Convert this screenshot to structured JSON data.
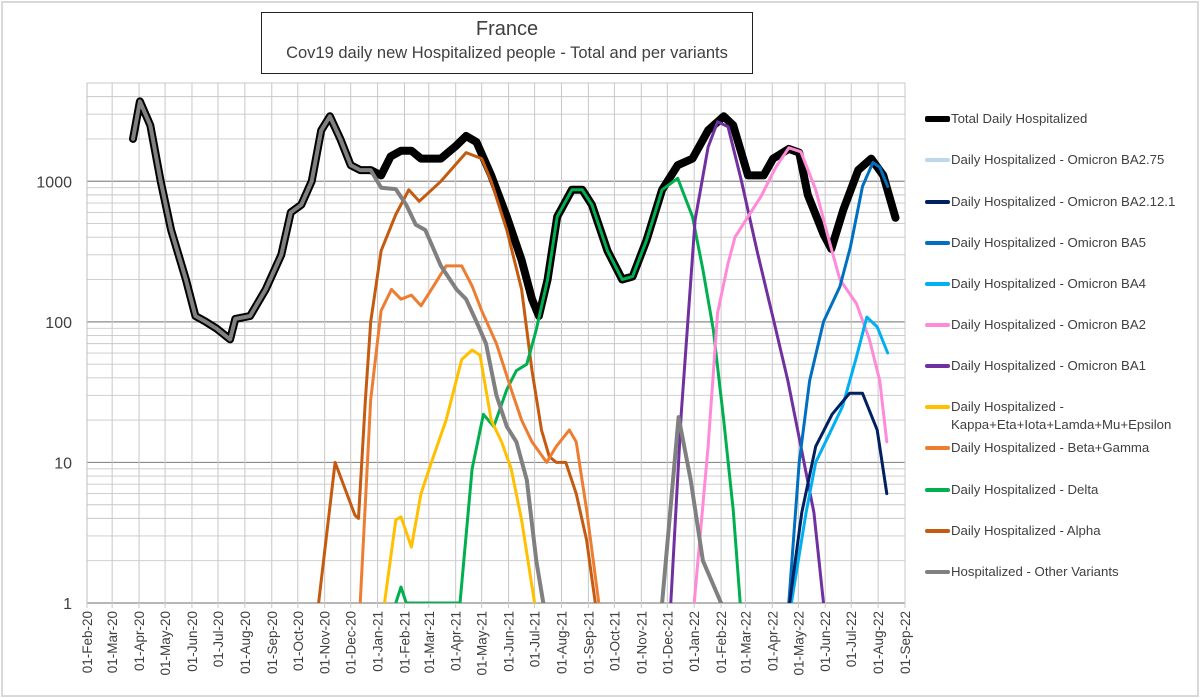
{
  "chart_data": {
    "type": "line",
    "title": "France",
    "subtitle": "Cov19 daily new Hospitalized people - Total and per variants",
    "xlabel": "",
    "ylabel": "",
    "y_scale": "log",
    "ylim": [
      1,
      5000
    ],
    "xlim": [
      "2020-02-01",
      "2022-09-01"
    ],
    "grid": true,
    "legend_position": "right",
    "y_ticks": [
      "1",
      "10",
      "100",
      "1000"
    ],
    "x_ticks": [
      "01-Feb-20",
      "01-Mar-20",
      "01-Apr-20",
      "01-May-20",
      "01-Jun-20",
      "01-Jul-20",
      "01-Aug-20",
      "01-Sep-20",
      "01-Oct-20",
      "01-Nov-20",
      "01-Dec-20",
      "01-Jan-21",
      "01-Feb-21",
      "01-Mar-21",
      "01-Apr-21",
      "01-May-21",
      "01-Jun-21",
      "01-Jul-21",
      "01-Aug-21",
      "01-Sep-21",
      "01-Oct-21",
      "01-Nov-21",
      "01-Dec-21",
      "01-Jan-22",
      "01-Feb-22",
      "01-Mar-22",
      "01-Apr-22",
      "01-May-22",
      "01-Jun-22",
      "01-Jul-22",
      "01-Aug-22",
      "01-Sep-22"
    ],
    "series": [
      {
        "name": "Total Daily Hospitalized",
        "color": "#000000",
        "points": [
          [
            "2020-03-25",
            2000
          ],
          [
            "2020-04-02",
            3700
          ],
          [
            "2020-04-14",
            2500
          ],
          [
            "2020-04-26",
            1000
          ],
          [
            "2020-05-08",
            450
          ],
          [
            "2020-05-25",
            200
          ],
          [
            "2020-06-05",
            110
          ],
          [
            "2020-06-17",
            100
          ],
          [
            "2020-06-29",
            90
          ],
          [
            "2020-07-15",
            75
          ],
          [
            "2020-07-21",
            105
          ],
          [
            "2020-08-07",
            110
          ],
          [
            "2020-08-25",
            170
          ],
          [
            "2020-09-12",
            300
          ],
          [
            "2020-09-23",
            600
          ],
          [
            "2020-10-05",
            680
          ],
          [
            "2020-10-17",
            1000
          ],
          [
            "2020-10-28",
            2300
          ],
          [
            "2020-11-07",
            2900
          ],
          [
            "2020-11-19",
            2000
          ],
          [
            "2020-12-01",
            1300
          ],
          [
            "2020-12-12",
            1200
          ],
          [
            "2020-12-24",
            1200
          ],
          [
            "2021-01-05",
            1100
          ],
          [
            "2021-01-16",
            1500
          ],
          [
            "2021-01-28",
            1650
          ],
          [
            "2021-02-09",
            1650
          ],
          [
            "2021-02-20",
            1450
          ],
          [
            "2021-03-15",
            1450
          ],
          [
            "2021-04-02",
            1800
          ],
          [
            "2021-04-13",
            2100
          ],
          [
            "2021-04-25",
            1900
          ],
          [
            "2021-05-12",
            1100
          ],
          [
            "2021-05-30",
            560
          ],
          [
            "2021-06-16",
            275
          ],
          [
            "2021-06-28",
            145
          ],
          [
            "2021-07-06",
            110
          ],
          [
            "2021-07-16",
            200
          ],
          [
            "2021-07-27",
            560
          ],
          [
            "2021-08-13",
            870
          ],
          [
            "2021-08-25",
            870
          ],
          [
            "2021-09-05",
            680
          ],
          [
            "2021-09-23",
            320
          ],
          [
            "2021-10-10",
            200
          ],
          [
            "2021-10-22",
            210
          ],
          [
            "2021-11-07",
            380
          ],
          [
            "2021-11-25",
            870
          ],
          [
            "2021-12-13",
            1300
          ],
          [
            "2021-12-30",
            1450
          ],
          [
            "2022-01-17",
            2300
          ],
          [
            "2022-02-04",
            2900
          ],
          [
            "2022-02-15",
            2500
          ],
          [
            "2022-03-04",
            1100
          ],
          [
            "2022-03-22",
            1100
          ],
          [
            "2022-04-02",
            1450
          ],
          [
            "2022-04-20",
            1700
          ],
          [
            "2022-05-02",
            1600
          ],
          [
            "2022-05-12",
            800
          ],
          [
            "2022-05-30",
            420
          ],
          [
            "2022-06-08",
            330
          ],
          [
            "2022-06-22",
            630
          ],
          [
            "2022-07-09",
            1200
          ],
          [
            "2022-07-24",
            1450
          ],
          [
            "2022-08-07",
            1100
          ],
          [
            "2022-08-21",
            550
          ]
        ]
      },
      {
        "name": "Daily Hospitalized - Omicron BA2.75",
        "color": "#BDD7EE",
        "points": []
      },
      {
        "name": "Daily Hospitalized - Omicron BA2.12.1",
        "color": "#002060",
        "points": [
          [
            "2022-04-21",
            1
          ],
          [
            "2022-05-05",
            4.4
          ],
          [
            "2022-05-21",
            13
          ],
          [
            "2022-06-09",
            22
          ],
          [
            "2022-06-29",
            31
          ],
          [
            "2022-07-14",
            31
          ],
          [
            "2022-07-31",
            17
          ],
          [
            "2022-08-11",
            6
          ]
        ]
      },
      {
        "name": "Daily Hospitalized - Omicron BA5",
        "color": "#0070C0",
        "points": [
          [
            "2022-04-20",
            1
          ],
          [
            "2022-05-02",
            10
          ],
          [
            "2022-05-14",
            38
          ],
          [
            "2022-05-30",
            100
          ],
          [
            "2022-06-18",
            178
          ],
          [
            "2022-06-30",
            340
          ],
          [
            "2022-07-14",
            920
          ],
          [
            "2022-07-26",
            1360
          ],
          [
            "2022-08-03",
            1260
          ],
          [
            "2022-08-12",
            920
          ]
        ]
      },
      {
        "name": "Daily Hospitalized - Omicron BA4",
        "color": "#00B0F0",
        "points": [
          [
            "2022-04-23",
            1
          ],
          [
            "2022-05-10",
            4.4
          ],
          [
            "2022-05-21",
            10
          ],
          [
            "2022-06-06",
            16
          ],
          [
            "2022-06-21",
            25
          ],
          [
            "2022-07-07",
            56
          ],
          [
            "2022-07-19",
            108
          ],
          [
            "2022-07-31",
            92
          ],
          [
            "2022-08-12",
            60
          ]
        ]
      },
      {
        "name": "Daily Hospitalized - Omicron BA2",
        "color": "#FF8AD8",
        "points": [
          [
            "2022-01-01",
            1
          ],
          [
            "2022-01-17",
            13
          ],
          [
            "2022-01-28",
            116
          ],
          [
            "2022-02-09",
            260
          ],
          [
            "2022-02-17",
            400
          ],
          [
            "2022-03-04",
            560
          ],
          [
            "2022-03-19",
            780
          ],
          [
            "2022-04-05",
            1260
          ],
          [
            "2022-04-20",
            1730
          ],
          [
            "2022-05-04",
            1620
          ],
          [
            "2022-05-21",
            870
          ],
          [
            "2022-06-06",
            370
          ],
          [
            "2022-06-18",
            200
          ],
          [
            "2022-07-07",
            135
          ],
          [
            "2022-07-22",
            75
          ],
          [
            "2022-08-03",
            38
          ],
          [
            "2022-08-11",
            14
          ]
        ]
      },
      {
        "name": "Daily Hospitalized - Omicron BA1",
        "color": "#7030A0",
        "points": [
          [
            "2021-12-05",
            1
          ],
          [
            "2021-12-17",
            22
          ],
          [
            "2022-01-02",
            530
          ],
          [
            "2022-01-17",
            1750
          ],
          [
            "2022-01-28",
            2650
          ],
          [
            "2022-02-09",
            2450
          ],
          [
            "2022-02-24",
            1030
          ],
          [
            "2022-03-15",
            310
          ],
          [
            "2022-04-03",
            100
          ],
          [
            "2022-04-19",
            38
          ],
          [
            "2022-05-04",
            13
          ],
          [
            "2022-05-19",
            4.4
          ],
          [
            "2022-05-30",
            1
          ]
        ]
      },
      {
        "name": "Daily Hospitalized - Kappa+Eta+Iota+Lamda+Mu+Epsilon",
        "color": "#FFC000",
        "points": [
          [
            "2021-01-09",
            1
          ],
          [
            "2021-01-22",
            3.9
          ],
          [
            "2021-01-28",
            4.1
          ],
          [
            "2021-02-09",
            2.5
          ],
          [
            "2021-02-20",
            6
          ],
          [
            "2021-03-04",
            10
          ],
          [
            "2021-03-21",
            20
          ],
          [
            "2021-04-08",
            54
          ],
          [
            "2021-04-20",
            63
          ],
          [
            "2021-04-29",
            58
          ],
          [
            "2021-05-12",
            20
          ],
          [
            "2021-05-24",
            14
          ],
          [
            "2021-06-04",
            9
          ],
          [
            "2021-06-16",
            3.9
          ],
          [
            "2021-07-01",
            1
          ]
        ]
      },
      {
        "name": "Daily Hospitalized - Beta+Gamma",
        "color": "#ED7D31",
        "points": [
          [
            "2020-12-12",
            1
          ],
          [
            "2020-12-24",
            28
          ],
          [
            "2021-01-05",
            120
          ],
          [
            "2021-01-17",
            170
          ],
          [
            "2021-01-28",
            145
          ],
          [
            "2021-02-09",
            155
          ],
          [
            "2021-02-20",
            130
          ],
          [
            "2021-03-04",
            170
          ],
          [
            "2021-03-21",
            250
          ],
          [
            "2021-04-08",
            250
          ],
          [
            "2021-04-20",
            180
          ],
          [
            "2021-05-01",
            120
          ],
          [
            "2021-05-18",
            70
          ],
          [
            "2021-06-04",
            33
          ],
          [
            "2021-06-16",
            20
          ],
          [
            "2021-06-28",
            14
          ],
          [
            "2021-07-15",
            10
          ],
          [
            "2021-07-26",
            13
          ],
          [
            "2021-08-10",
            17
          ],
          [
            "2021-08-18",
            14
          ],
          [
            "2021-08-30",
            4.6
          ],
          [
            "2021-09-13",
            1
          ]
        ]
      },
      {
        "name": "Daily Hospitalized - Delta",
        "color": "#00B050",
        "points": [
          [
            "2021-01-22",
            1
          ],
          [
            "2021-01-28",
            1.3
          ],
          [
            "2021-02-03",
            1
          ],
          [
            "2021-04-06",
            1
          ],
          [
            "2021-04-20",
            9
          ],
          [
            "2021-05-03",
            22
          ],
          [
            "2021-05-15",
            18
          ],
          [
            "2021-05-30",
            33
          ],
          [
            "2021-06-10",
            45
          ],
          [
            "2021-06-22",
            50
          ],
          [
            "2021-07-03",
            88
          ],
          [
            "2021-07-16",
            200
          ],
          [
            "2021-07-27",
            560
          ],
          [
            "2021-08-13",
            870
          ],
          [
            "2021-08-25",
            870
          ],
          [
            "2021-09-05",
            680
          ],
          [
            "2021-09-23",
            320
          ],
          [
            "2021-10-10",
            200
          ],
          [
            "2021-10-22",
            210
          ],
          [
            "2021-11-07",
            380
          ],
          [
            "2021-11-25",
            870
          ],
          [
            "2021-12-13",
            1050
          ],
          [
            "2021-12-30",
            560
          ],
          [
            "2022-01-11",
            235
          ],
          [
            "2022-01-23",
            88
          ],
          [
            "2022-02-04",
            20
          ],
          [
            "2022-02-15",
            4.6
          ],
          [
            "2022-02-23",
            1
          ]
        ]
      },
      {
        "name": "Daily Hospitalized - Alpha",
        "color": "#C55A11",
        "points": [
          [
            "2020-10-25",
            1
          ],
          [
            "2020-11-13",
            10
          ],
          [
            "2020-12-06",
            4.2
          ],
          [
            "2020-12-10",
            4
          ],
          [
            "2020-12-18",
            28
          ],
          [
            "2020-12-24",
            100
          ],
          [
            "2021-01-05",
            320
          ],
          [
            "2021-01-22",
            580
          ],
          [
            "2021-02-06",
            870
          ],
          [
            "2021-02-18",
            720
          ],
          [
            "2021-03-15",
            1000
          ],
          [
            "2021-04-13",
            1600
          ],
          [
            "2021-05-01",
            1450
          ],
          [
            "2021-05-12",
            1000
          ],
          [
            "2021-05-30",
            450
          ],
          [
            "2021-06-16",
            170
          ],
          [
            "2021-06-28",
            45
          ],
          [
            "2021-07-09",
            17
          ],
          [
            "2021-07-18",
            11
          ],
          [
            "2021-07-26",
            10
          ],
          [
            "2021-08-06",
            10
          ],
          [
            "2021-08-18",
            6
          ],
          [
            "2021-08-30",
            2.8
          ],
          [
            "2021-09-09",
            1
          ]
        ]
      },
      {
        "name": "Hospitalized - Other Variants",
        "color": "#808080",
        "points": [
          [
            "2020-03-25",
            2000
          ],
          [
            "2020-04-02",
            3700
          ],
          [
            "2020-04-14",
            2500
          ],
          [
            "2020-04-26",
            1000
          ],
          [
            "2020-05-08",
            450
          ],
          [
            "2020-05-25",
            200
          ],
          [
            "2020-06-05",
            110
          ],
          [
            "2020-06-17",
            100
          ],
          [
            "2020-06-29",
            90
          ],
          [
            "2020-07-15",
            75
          ],
          [
            "2020-07-21",
            105
          ],
          [
            "2020-08-07",
            110
          ],
          [
            "2020-08-25",
            170
          ],
          [
            "2020-09-12",
            300
          ],
          [
            "2020-09-23",
            600
          ],
          [
            "2020-10-05",
            680
          ],
          [
            "2020-10-17",
            1000
          ],
          [
            "2020-10-28",
            2300
          ],
          [
            "2020-11-07",
            2900
          ],
          [
            "2020-11-19",
            2000
          ],
          [
            "2020-12-01",
            1300
          ],
          [
            "2020-12-12",
            1200
          ],
          [
            "2020-12-24",
            1200
          ],
          [
            "2021-01-05",
            900
          ],
          [
            "2021-01-22",
            880
          ],
          [
            "2021-02-03",
            680
          ],
          [
            "2021-02-14",
            490
          ],
          [
            "2021-02-25",
            450
          ],
          [
            "2021-03-15",
            250
          ],
          [
            "2021-04-02",
            170
          ],
          [
            "2021-04-13",
            145
          ],
          [
            "2021-04-25",
            100
          ],
          [
            "2021-05-06",
            70
          ],
          [
            "2021-05-18",
            30
          ],
          [
            "2021-05-30",
            18
          ],
          [
            "2021-06-10",
            14
          ],
          [
            "2021-06-22",
            7.5
          ],
          [
            "2021-07-03",
            2
          ],
          [
            "2021-07-11",
            1
          ]
        ],
        "points2": [
          [
            "2021-11-25",
            1
          ],
          [
            "2021-12-14",
            21
          ],
          [
            "2021-12-28",
            7.5
          ],
          [
            "2022-01-11",
            2
          ],
          [
            "2022-02-01",
            1
          ]
        ]
      }
    ]
  }
}
